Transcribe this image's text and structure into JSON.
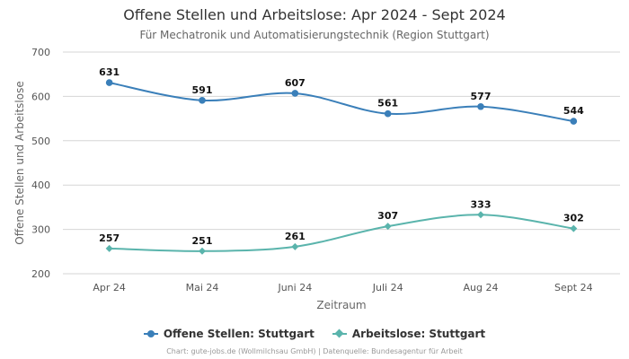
{
  "chart_data": {
    "type": "line",
    "title": "Offene Stellen und Arbeitslose: Apr 2024 - Sept 2024",
    "subtitle": "Für Mechatronik und Automatisierungstechnik (Region Stuttgart)",
    "xlabel": "Zeitraum",
    "ylabel": "Offene Stellen und Arbeitslose",
    "categories": [
      "Apr 24",
      "Mai 24",
      "Juni 24",
      "Juli 24",
      "Aug 24",
      "Sept 24"
    ],
    "ylim": [
      200,
      700
    ],
    "yticks": [
      200,
      300,
      400,
      500,
      600,
      700
    ],
    "grid": true,
    "legend_position": "bottom",
    "series": [
      {
        "name": "Offene Stellen: Stuttgart",
        "values": [
          631,
          591,
          607,
          561,
          577,
          544
        ],
        "color": "#3a7fb9",
        "marker": "circle"
      },
      {
        "name": "Arbeitslose: Stuttgart",
        "values": [
          257,
          251,
          261,
          307,
          333,
          302
        ],
        "color": "#5ab4ac",
        "marker": "diamond"
      }
    ]
  },
  "credits": "Chart: gute-jobs.de (Wollmilchsau GmbH) | Datenquelle: Bundesagentur für Arbeit"
}
